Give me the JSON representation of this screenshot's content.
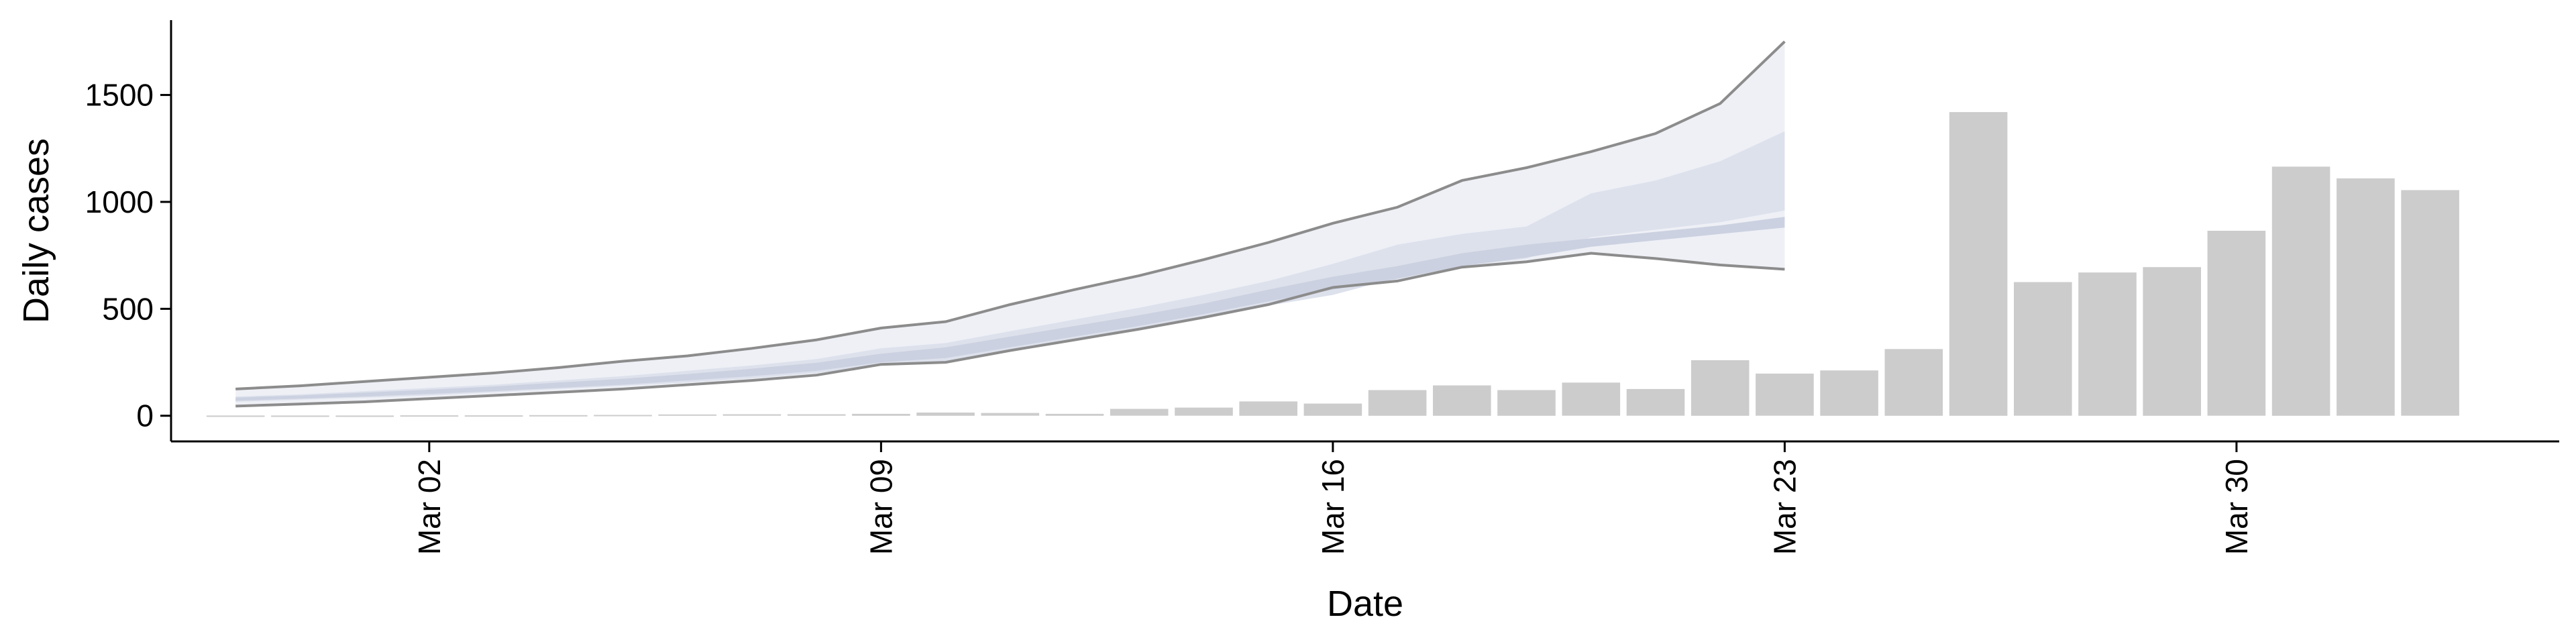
{
  "chart_data": {
    "type": "bar",
    "title": "",
    "xlabel": "Date",
    "ylabel": "Daily cases",
    "x_start": "2020-02-27",
    "x_end": "2020-04-04",
    "xlim": [
      "2020-02-27",
      "2020-04-04"
    ],
    "ylim": [
      -120,
      1850
    ],
    "y_ticks": [
      0,
      500,
      1000,
      1500
    ],
    "x_ticks": [
      {
        "date": "2020-03-02",
        "label": "Mar 02"
      },
      {
        "date": "2020-03-09",
        "label": "Mar 09"
      },
      {
        "date": "2020-03-16",
        "label": "Mar 16"
      },
      {
        "date": "2020-03-23",
        "label": "Mar 23"
      },
      {
        "date": "2020-03-30",
        "label": "Mar 30"
      }
    ],
    "bars": {
      "color": "#cccccc",
      "points": [
        {
          "date": "2020-02-28",
          "value": 1
        },
        {
          "date": "2020-02-29",
          "value": 1
        },
        {
          "date": "2020-03-01",
          "value": 1
        },
        {
          "date": "2020-03-02",
          "value": 2
        },
        {
          "date": "2020-03-03",
          "value": 2
        },
        {
          "date": "2020-03-04",
          "value": 3
        },
        {
          "date": "2020-03-05",
          "value": 4
        },
        {
          "date": "2020-03-06",
          "value": 6
        },
        {
          "date": "2020-03-07",
          "value": 7
        },
        {
          "date": "2020-03-08",
          "value": 7
        },
        {
          "date": "2020-03-09",
          "value": 9
        },
        {
          "date": "2020-03-10",
          "value": 15
        },
        {
          "date": "2020-03-11",
          "value": 13
        },
        {
          "date": "2020-03-12",
          "value": 9
        },
        {
          "date": "2020-03-13",
          "value": 32
        },
        {
          "date": "2020-03-14",
          "value": 38
        },
        {
          "date": "2020-03-15",
          "value": 67
        },
        {
          "date": "2020-03-16",
          "value": 57
        },
        {
          "date": "2020-03-17",
          "value": 120
        },
        {
          "date": "2020-03-18",
          "value": 142
        },
        {
          "date": "2020-03-19",
          "value": 120
        },
        {
          "date": "2020-03-20",
          "value": 155
        },
        {
          "date": "2020-03-21",
          "value": 125
        },
        {
          "date": "2020-03-22",
          "value": 260
        },
        {
          "date": "2020-03-23",
          "value": 197
        },
        {
          "date": "2020-03-24",
          "value": 212
        },
        {
          "date": "2020-03-25",
          "value": 312
        },
        {
          "date": "2020-03-26",
          "value": 1420
        },
        {
          "date": "2020-03-27",
          "value": 625
        },
        {
          "date": "2020-03-28",
          "value": 670
        },
        {
          "date": "2020-03-29",
          "value": 695
        },
        {
          "date": "2020-03-30",
          "value": 865
        },
        {
          "date": "2020-03-31",
          "value": 1165
        },
        {
          "date": "2020-04-01",
          "value": 1110
        },
        {
          "date": "2020-04-02",
          "value": 1055
        }
      ]
    },
    "model_fit": {
      "dates": [
        "2020-02-28",
        "2020-02-29",
        "2020-03-01",
        "2020-03-02",
        "2020-03-03",
        "2020-03-04",
        "2020-03-05",
        "2020-03-06",
        "2020-03-07",
        "2020-03-08",
        "2020-03-09",
        "2020-03-10",
        "2020-03-11",
        "2020-03-12",
        "2020-03-13",
        "2020-03-14",
        "2020-03-15",
        "2020-03-16",
        "2020-03-17",
        "2020-03-18",
        "2020-03-19",
        "2020-03-20",
        "2020-03-21",
        "2020-03-22",
        "2020-03-23"
      ],
      "outer_upper": [
        125,
        140,
        160,
        180,
        200,
        225,
        255,
        280,
        315,
        355,
        410,
        440,
        520,
        590,
        655,
        730,
        810,
        900,
        975,
        1100,
        1160,
        1235,
        1320,
        1460,
        1750
      ],
      "outer_lower": [
        45,
        55,
        65,
        80,
        95,
        110,
        125,
        145,
        165,
        190,
        240,
        250,
        305,
        355,
        405,
        460,
        520,
        600,
        630,
        695,
        720,
        760,
        735,
        705,
        685
      ],
      "inner_upper": [
        90,
        100,
        115,
        130,
        145,
        165,
        185,
        210,
        235,
        265,
        315,
        340,
        395,
        450,
        505,
        565,
        630,
        710,
        800,
        850,
        885,
        1040,
        1100,
        1190,
        1330
      ],
      "inner_lower": [
        65,
        75,
        85,
        95,
        110,
        125,
        140,
        155,
        175,
        200,
        235,
        250,
        305,
        355,
        400,
        455,
        515,
        565,
        645,
        700,
        735,
        835,
        870,
        905,
        960
      ],
      "core_upper": [
        85,
        95,
        108,
        122,
        137,
        155,
        173,
        195,
        220,
        248,
        290,
        320,
        370,
        420,
        470,
        525,
        590,
        650,
        700,
        760,
        800,
        830,
        860,
        890,
        930
      ],
      "core_lower": [
        70,
        80,
        90,
        102,
        115,
        130,
        145,
        165,
        185,
        210,
        250,
        270,
        320,
        370,
        420,
        475,
        535,
        590,
        640,
        700,
        740,
        790,
        820,
        850,
        880
      ],
      "colors": {
        "outer_band": "#eef0f6",
        "inner_band": "#dde1ec",
        "core_band": "#ccd1e1",
        "boundary_line": "#8c8c8c"
      }
    }
  }
}
